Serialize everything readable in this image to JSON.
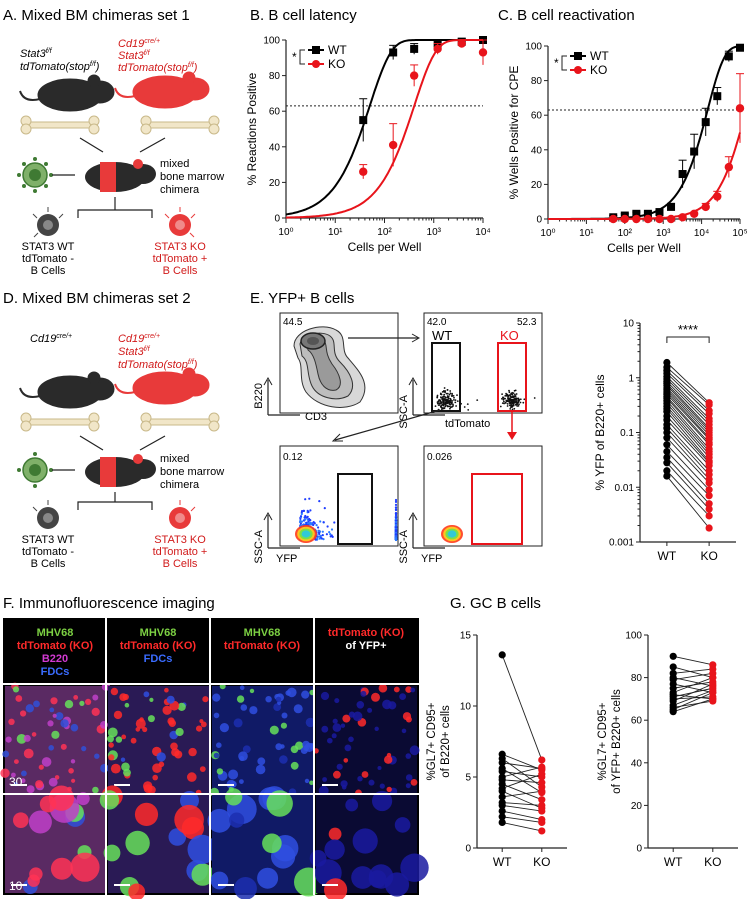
{
  "panels": {
    "A": {
      "title": "A. Mixed BM chimeras set 1",
      "wt_mouse_label_1": "Stat3",
      "wt_mouse_sup_1": "f/f",
      "wt_mouse_label_2": "tdTomato(stop",
      "wt_mouse_sup_2": "f/f",
      "wt_mouse_close_2": ")",
      "ko_mouse_label_1": "Cd19",
      "ko_mouse_sup_1": "cre/+",
      "ko_mouse_label_2": "Stat3",
      "ko_mouse_sup_2": "f/f",
      "ko_mouse_label_3": "tdTomato(stop",
      "ko_mouse_sup_3": "f/f",
      "ko_mouse_close_3": ")",
      "chimera_line1": "mixed",
      "chimera_line2": "bone marrow",
      "chimera_line3": "chimera",
      "wt_cell_line1": "STAT3 WT",
      "wt_cell_line2": "tdTomato -",
      "wt_cell_line3": "B Cells",
      "ko_cell_line1": "STAT3 KO",
      "ko_cell_line2": "tdTomato +",
      "ko_cell_line3": "B Cells"
    },
    "B": {
      "title": "B. B cell latency"
    },
    "C": {
      "title": "C. B cell reactivation"
    },
    "D": {
      "title": "D. Mixed BM chimeras set 2",
      "wt_mouse_label_1": "Cd19",
      "wt_mouse_sup_1": "cre/+",
      "ko_mouse_label_1": "Cd19",
      "ko_mouse_sup_1": "cre/+",
      "ko_mouse_label_2": "Stat3",
      "ko_mouse_sup_2": "f/f",
      "ko_mouse_label_3": "tdTomato(stop",
      "ko_mouse_sup_3": "f/f",
      "ko_mouse_close_3": ")",
      "chimera_line1": "mixed",
      "chimera_line2": "bone marrow",
      "chimera_line3": "chimera",
      "wt_cell_line1": "STAT3 WT",
      "wt_cell_line2": "tdTomato -",
      "wt_cell_line3": "B Cells",
      "ko_cell_line1": "STAT3 KO",
      "ko_cell_line2": "tdTomato +",
      "ko_cell_line3": "B Cells"
    },
    "E": {
      "title": "E. YFP+ B cells",
      "gate1_value": "44.5",
      "gate1_y": "B220",
      "gate1_x": "CD3",
      "gate2_left": "42.0",
      "gate2_right": "52.3",
      "gate2_wt": "WT",
      "gate2_ko": "KO",
      "gate2_y": "SSC-A",
      "gate2_x": "tdTomato",
      "gate3_value": "0.12",
      "gate3_y": "SSC-A",
      "gate3_x": "YFP",
      "gate4_value": "0.026",
      "gate4_y": "SSC-A",
      "gate4_x": "YFP"
    },
    "F": {
      "title": "F. Immunofluorescence imaging",
      "col1": [
        "MHV68",
        "tdTomato (KO)",
        "B220",
        "FDCs"
      ],
      "col2": [
        "MHV68",
        "tdTomato (KO)",
        "FDCs"
      ],
      "col3": [
        "MHV68",
        "tdTomato (KO)"
      ],
      "col4": [
        "tdTomato (KO)",
        "of YFP+"
      ],
      "scale_top": "30",
      "scale_bottom": "10"
    },
    "G": {
      "title": "G. GC B cells"
    }
  },
  "chart_data": [
    {
      "id": "B",
      "type": "scatter",
      "xscale": "log",
      "ylabel": "% Reactions Positive",
      "xlabel": "Cells per Well",
      "xlim": [
        1,
        10000
      ],
      "ylim": [
        0,
        100
      ],
      "xticks": [
        "10⁰",
        "10¹",
        "10²",
        "10³",
        "10⁴"
      ],
      "yticks": [
        "0",
        "20",
        "40",
        "60",
        "80",
        "100"
      ],
      "reference_line_y": 63,
      "significance": "*",
      "series": [
        {
          "name": "WT",
          "color": "#000000",
          "marker": "square",
          "x": [
            37,
            150,
            400,
            1200,
            3700,
            10000
          ],
          "y": [
            55,
            93,
            95,
            98,
            99,
            100
          ],
          "err": [
            12,
            4,
            3,
            2,
            2,
            1
          ],
          "fit_ec50": 35
        },
        {
          "name": "KO",
          "color": "#e8141b",
          "marker": "circle",
          "x": [
            37,
            150,
            400,
            1200,
            3700,
            10000
          ],
          "y": [
            26,
            41,
            80,
            95,
            98,
            93
          ],
          "err": [
            4,
            12,
            6,
            3,
            2,
            7
          ],
          "fit_ec50": 280
        }
      ]
    },
    {
      "id": "C",
      "type": "scatter",
      "xscale": "log",
      "ylabel": "% Wells Positive for CPE",
      "xlabel": "Cells per Well",
      "xlim": [
        1,
        100000
      ],
      "ylim": [
        0,
        100
      ],
      "xticks": [
        "10⁰",
        "10¹",
        "10²",
        "10³",
        "10⁴",
        "10⁵"
      ],
      "yticks": [
        "0",
        "20",
        "40",
        "60",
        "80",
        "100"
      ],
      "reference_line_y": 63,
      "significance": "*",
      "series": [
        {
          "name": "WT",
          "color": "#000000",
          "marker": "square",
          "x": [
            50,
            100,
            200,
            400,
            800,
            1600,
            3200,
            6400,
            12800,
            25600,
            51200,
            100000
          ],
          "y": [
            1,
            2,
            3,
            3,
            4,
            7,
            26,
            39,
            56,
            71,
            94,
            99
          ],
          "err": [
            1,
            1,
            1,
            1,
            1,
            2,
            8,
            10,
            8,
            5,
            3,
            1
          ],
          "fit_ec50": 10000
        },
        {
          "name": "KO",
          "color": "#e8141b",
          "marker": "circle",
          "x": [
            50,
            100,
            200,
            400,
            800,
            1600,
            3200,
            6400,
            12800,
            25600,
            51200,
            100000
          ],
          "y": [
            0,
            0,
            0,
            0,
            0,
            0,
            1,
            3,
            7,
            13,
            30,
            64
          ],
          "err": [
            0,
            0,
            0,
            0,
            0,
            0,
            1,
            1,
            2,
            3,
            6,
            20
          ],
          "fit_ec50": 100000
        }
      ]
    },
    {
      "id": "E",
      "type": "scatter",
      "yscale": "log",
      "ylabel": "% YFP of B220+ cells",
      "categories": [
        "WT",
        "KO"
      ],
      "ylim": [
        0.001,
        10
      ],
      "yticks": [
        "0.001",
        "0.01",
        "0.1",
        "1",
        "10"
      ],
      "significance": "****",
      "pairs": [
        [
          1.9,
          0.35
        ],
        [
          1.55,
          0.32
        ],
        [
          1.35,
          0.25
        ],
        [
          1.2,
          0.22
        ],
        [
          1.05,
          0.18
        ],
        [
          0.95,
          0.16
        ],
        [
          0.85,
          0.14
        ],
        [
          0.78,
          0.12
        ],
        [
          0.72,
          0.11
        ],
        [
          0.65,
          0.1
        ],
        [
          0.6,
          0.09
        ],
        [
          0.55,
          0.08
        ],
        [
          0.5,
          0.075
        ],
        [
          0.45,
          0.065
        ],
        [
          0.42,
          0.06
        ],
        [
          0.38,
          0.05
        ],
        [
          0.34,
          0.045
        ],
        [
          0.3,
          0.04
        ],
        [
          0.27,
          0.035
        ],
        [
          0.24,
          0.03
        ],
        [
          0.2,
          0.028
        ],
        [
          0.17,
          0.025
        ],
        [
          0.14,
          0.02
        ],
        [
          0.12,
          0.017
        ],
        [
          0.1,
          0.014
        ],
        [
          0.08,
          0.012
        ],
        [
          0.06,
          0.009
        ],
        [
          0.045,
          0.007
        ],
        [
          0.035,
          0.005
        ],
        [
          0.028,
          0.004
        ],
        [
          0.02,
          0.003
        ],
        [
          0.016,
          0.0018
        ]
      ]
    },
    {
      "id": "G1",
      "type": "scatter",
      "ylabel": "%GL7+ CD95+ of B220+ cells",
      "categories": [
        "WT",
        "KO"
      ],
      "ylim": [
        0,
        15
      ],
      "yticks": [
        "0",
        "5",
        "10",
        "15"
      ],
      "pairs": [
        [
          13.6,
          6.2
        ],
        [
          6.6,
          5.5
        ],
        [
          6.3,
          4.3
        ],
        [
          6.0,
          5.6
        ],
        [
          5.6,
          3.9
        ],
        [
          5.4,
          5.0
        ],
        [
          5.0,
          5.7
        ],
        [
          4.8,
          4.6
        ],
        [
          4.5,
          3.4
        ],
        [
          4.2,
          5.2
        ],
        [
          4.0,
          2.8
        ],
        [
          3.6,
          4.0
        ],
        [
          3.2,
          3.0
        ],
        [
          3.0,
          2.6
        ],
        [
          2.6,
          2.0
        ],
        [
          2.2,
          1.8
        ],
        [
          1.8,
          1.2
        ]
      ]
    },
    {
      "id": "G2",
      "type": "scatter",
      "ylabel": "%GL7+ CD95+ of YFP+ B220+ cells",
      "categories": [
        "WT",
        "KO"
      ],
      "ylim": [
        0,
        100
      ],
      "yticks": [
        "0",
        "20",
        "40",
        "60",
        "80",
        "100"
      ],
      "pairs": [
        [
          90,
          86
        ],
        [
          85,
          80
        ],
        [
          82,
          84
        ],
        [
          80,
          76
        ],
        [
          79,
          82
        ],
        [
          77,
          73
        ],
        [
          75,
          78
        ],
        [
          73,
          80
        ],
        [
          72,
          70
        ],
        [
          71,
          75
        ],
        [
          70,
          71
        ],
        [
          69,
          77
        ],
        [
          67,
          74
        ],
        [
          66,
          69
        ],
        [
          65,
          73
        ],
        [
          64,
          70
        ]
      ]
    }
  ]
}
